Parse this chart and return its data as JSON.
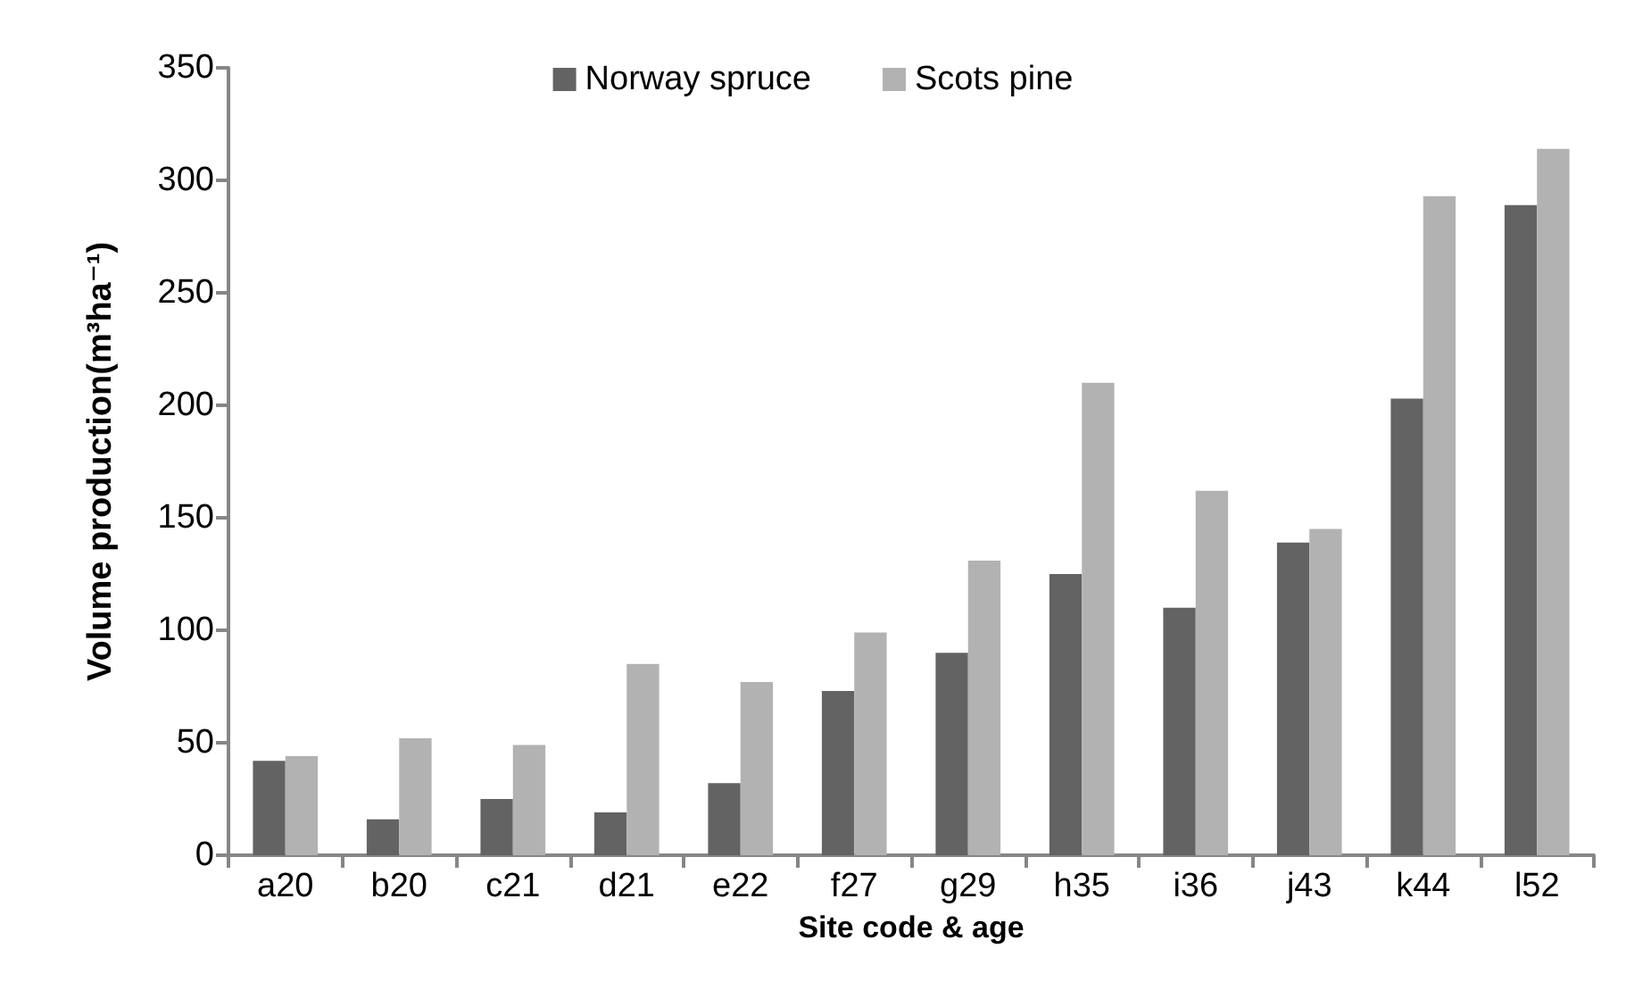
{
  "chart_data": {
    "type": "bar",
    "xlabel": "Site code & age",
    "ylabel": "Volume production(m³ha⁻¹)",
    "categories": [
      "a20",
      "b20",
      "c21",
      "d21",
      "e22",
      "f27",
      "g29",
      "h35",
      "i36",
      "j43",
      "k44",
      "l52"
    ],
    "series": [
      {
        "name": "Norway spruce",
        "color": "#636363",
        "values": [
          42,
          16,
          25,
          19,
          32,
          73,
          90,
          125,
          110,
          139,
          203,
          289
        ]
      },
      {
        "name": "Scots pine",
        "color": "#b2b2b2",
        "values": [
          44,
          52,
          49,
          85,
          77,
          99,
          131,
          210,
          162,
          145,
          293,
          314
        ]
      }
    ],
    "ylim": [
      0,
      350
    ],
    "yticks": [
      0,
      50,
      100,
      150,
      200,
      250,
      300,
      350
    ],
    "grid": false,
    "legend": "top"
  }
}
